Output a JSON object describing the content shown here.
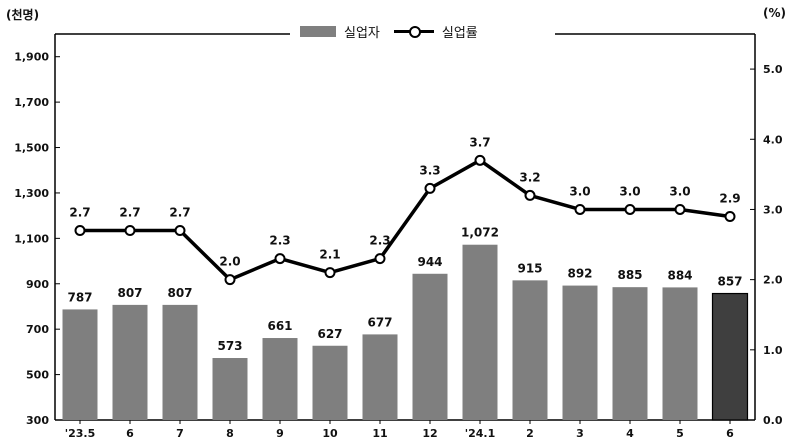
{
  "units": {
    "left": "(천명)",
    "right": "(%)"
  },
  "legend": {
    "bar_label": "실업자",
    "line_label": "실업률"
  },
  "colors": {
    "bar": "#7f7f7f",
    "bar_highlight": "#3f3f3f",
    "line": "#000000",
    "marker_fill": "#ffffff",
    "axis": "#000000"
  },
  "chart_data": {
    "type": "bar+line",
    "categories": [
      "'23.5",
      "6",
      "7",
      "8",
      "9",
      "10",
      "11",
      "12",
      "'24.1",
      "2",
      "3",
      "4",
      "5",
      "6"
    ],
    "series": [
      {
        "name": "실업자",
        "type": "bar",
        "axis": "left",
        "values": [
          787,
          807,
          807,
          573,
          661,
          627,
          677,
          944,
          1072,
          915,
          892,
          885,
          884,
          857
        ],
        "labels": [
          "787",
          "807",
          "807",
          "573",
          "661",
          "627",
          "677",
          "944",
          "1,072",
          "915",
          "892",
          "885",
          "884",
          "857"
        ]
      },
      {
        "name": "실업률",
        "type": "line",
        "axis": "right",
        "values": [
          2.7,
          2.7,
          2.7,
          2.0,
          2.3,
          2.1,
          2.3,
          3.3,
          3.7,
          3.2,
          3.0,
          3.0,
          3.0,
          2.9
        ],
        "labels": [
          "2.7",
          "2.7",
          "2.7",
          "2.0",
          "2.3",
          "2.1",
          "2.3",
          "3.3",
          "3.7",
          "3.2",
          "3.0",
          "3.0",
          "3.0",
          "2.9"
        ]
      }
    ],
    "highlight_index": 13,
    "y_left": {
      "min": 300,
      "max": 2000,
      "ticks": [
        300,
        500,
        700,
        900,
        1100,
        1300,
        1500,
        1700,
        1900
      ],
      "tick_labels": [
        "300",
        "500",
        "700",
        "900",
        "1,100",
        "1,300",
        "1,500",
        "1,700",
        "1,900"
      ]
    },
    "y_right": {
      "min": 0,
      "max": 5.5,
      "ticks": [
        0,
        1,
        2,
        3,
        4,
        5
      ],
      "tick_labels": [
        "0.0",
        "1.0",
        "2.0",
        "3.0",
        "4.0",
        "5.0"
      ]
    },
    "legend_position": "top-center",
    "grid": false
  }
}
